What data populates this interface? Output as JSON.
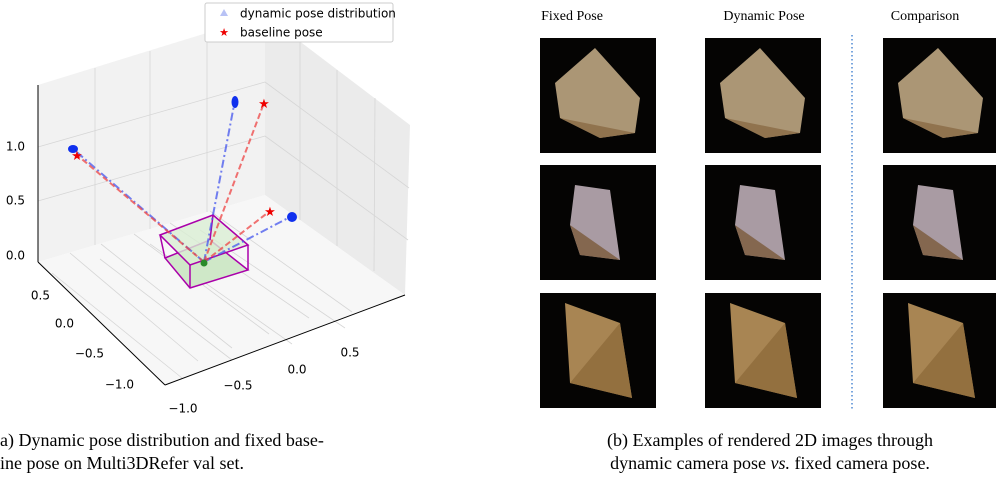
{
  "left_panel": {
    "legend": [
      "dynamic pose distribution",
      "baseline pose"
    ],
    "z_ticks": [
      "1.0",
      "0.5",
      "0.0"
    ],
    "x_ticks": [
      "0.5",
      "0.0",
      "−0.5",
      "−1.0"
    ],
    "y_ticks": [
      "−1.0",
      "−0.5",
      "0.0",
      "0.5"
    ],
    "caption": [
      "a) Dynamic pose distribution and fixed base-",
      "ine pose on Multi3DRefer val set."
    ]
  },
  "right_panel": {
    "columns": [
      "Fixed Pose",
      "Dynamic Pose",
      "Comparison"
    ],
    "caption_line1": "(b) Examples of rendered 2D images through",
    "caption_line2": [
      "dynamic camera pose ",
      "vs.",
      " fixed camera pose."
    ]
  }
}
